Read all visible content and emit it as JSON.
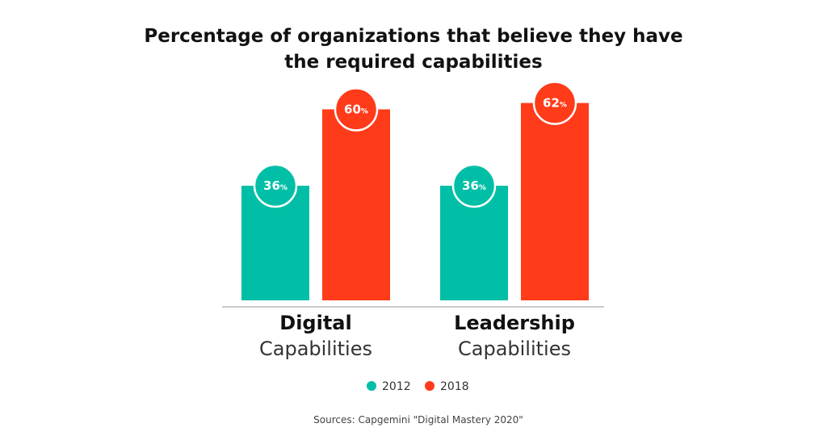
{
  "chart_data": {
    "type": "bar",
    "title": [
      "Percentage of organizations that believe they have",
      "the required capabilities"
    ],
    "categories": [
      {
        "bold": "Digital",
        "light": "Capabilities"
      },
      {
        "bold": "Leadership",
        "light": "Capabilities"
      }
    ],
    "series": [
      {
        "name": "2012",
        "color": "#00bfa6",
        "values": [
          36,
          36
        ]
      },
      {
        "name": "2018",
        "color": "#ff3b1a",
        "values": [
          60,
          62
        ]
      }
    ],
    "value_unit": "%",
    "ylim": [
      0,
      70
    ],
    "legend_position": "bottom",
    "grid": false,
    "source": "Sources: Capgemini \"Digital Mastery 2020\""
  }
}
